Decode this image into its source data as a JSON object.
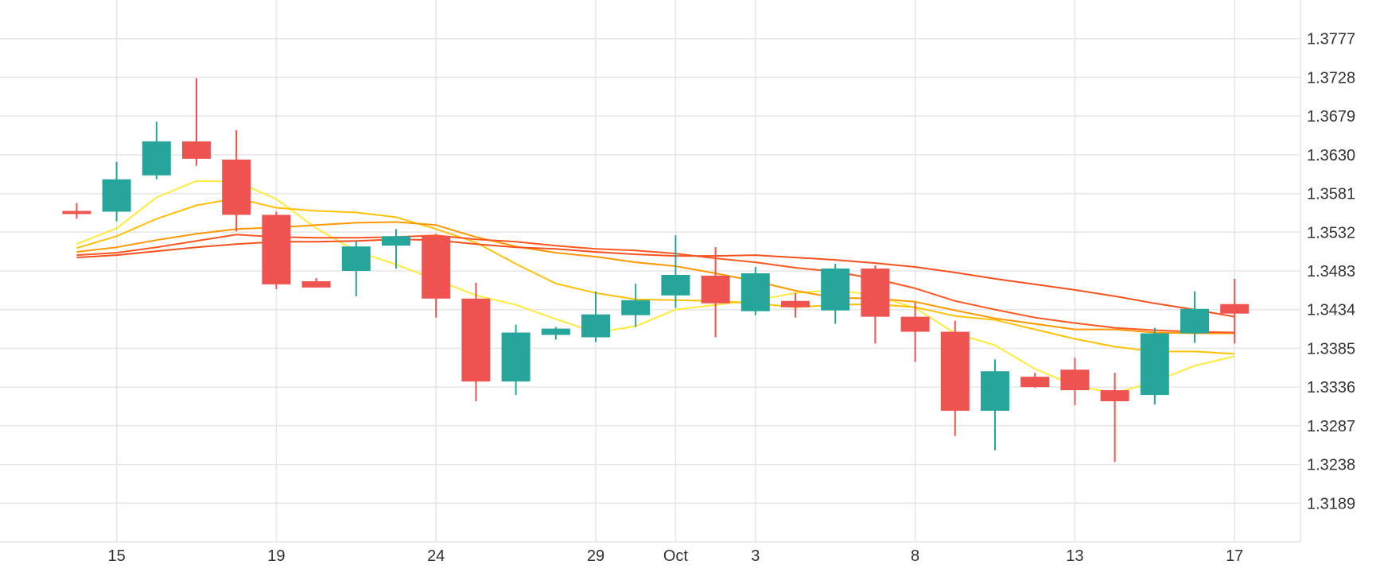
{
  "chart_data": {
    "type": "candlestick",
    "title": "",
    "xlabel": "",
    "ylabel": "",
    "ylim": [
      1.314,
      1.3826
    ],
    "y_ticks": [
      "1.3777",
      "1.3728",
      "1.3679",
      "1.3630",
      "1.3581",
      "1.3532",
      "1.3483",
      "1.3434",
      "1.3385",
      "1.3336",
      "1.3287",
      "1.3238",
      "1.3189"
    ],
    "x_ticks": [
      {
        "label": "15",
        "day": 2
      },
      {
        "label": "19",
        "day": 6
      },
      {
        "label": "24",
        "day": 10
      },
      {
        "label": "29",
        "day": 14
      },
      {
        "label": "Oct",
        "day": 16
      },
      {
        "label": "3",
        "day": 18
      },
      {
        "label": "8",
        "day": 22
      },
      {
        "label": "13",
        "day": 26
      },
      {
        "label": "17",
        "day": 30
      }
    ],
    "grid": true,
    "colors": {
      "up": "#26a69a",
      "down": "#ef5350",
      "grid": "#e6e6e6"
    },
    "candles": [
      {
        "day": 1,
        "o": 1.3559,
        "h": 1.3569,
        "l": 1.3549,
        "c": 1.3555
      },
      {
        "day": 2,
        "o": 1.3558,
        "h": 1.3621,
        "l": 1.3546,
        "c": 1.3599
      },
      {
        "day": 3,
        "o": 1.3604,
        "h": 1.3672,
        "l": 1.3599,
        "c": 1.3647
      },
      {
        "day": 4,
        "o": 1.3647,
        "h": 1.3727,
        "l": 1.3616,
        "c": 1.3625
      },
      {
        "day": 5,
        "o": 1.3624,
        "h": 1.3661,
        "l": 1.3533,
        "c": 1.3554
      },
      {
        "day": 6,
        "o": 1.3554,
        "h": 1.3558,
        "l": 1.346,
        "c": 1.3466
      },
      {
        "day": 7,
        "o": 1.347,
        "h": 1.3474,
        "l": 1.3462,
        "c": 1.3462
      },
      {
        "day": 8,
        "o": 1.3483,
        "h": 1.3521,
        "l": 1.3451,
        "c": 1.3514
      },
      {
        "day": 9,
        "o": 1.3515,
        "h": 1.3536,
        "l": 1.3486,
        "c": 1.3527
      },
      {
        "day": 10,
        "o": 1.3527,
        "h": 1.353,
        "l": 1.3424,
        "c": 1.3448
      },
      {
        "day": 11,
        "o": 1.3448,
        "h": 1.3468,
        "l": 1.3318,
        "c": 1.3343
      },
      {
        "day": 12,
        "o": 1.3343,
        "h": 1.3415,
        "l": 1.3326,
        "c": 1.3405
      },
      {
        "day": 13,
        "o": 1.3402,
        "h": 1.3412,
        "l": 1.3396,
        "c": 1.341
      },
      {
        "day": 14,
        "o": 1.3399,
        "h": 1.3457,
        "l": 1.3393,
        "c": 1.3428
      },
      {
        "day": 15,
        "o": 1.3427,
        "h": 1.3467,
        "l": 1.3412,
        "c": 1.3446
      },
      {
        "day": 16,
        "o": 1.3452,
        "h": 1.3528,
        "l": 1.3436,
        "c": 1.3478
      },
      {
        "day": 17,
        "o": 1.3477,
        "h": 1.3513,
        "l": 1.3399,
        "c": 1.3442
      },
      {
        "day": 18,
        "o": 1.3432,
        "h": 1.3488,
        "l": 1.3427,
        "c": 1.348
      },
      {
        "day": 19,
        "o": 1.3445,
        "h": 1.3455,
        "l": 1.3424,
        "c": 1.3437
      },
      {
        "day": 20,
        "o": 1.3433,
        "h": 1.3492,
        "l": 1.3416,
        "c": 1.3486
      },
      {
        "day": 21,
        "o": 1.3486,
        "h": 1.349,
        "l": 1.3391,
        "c": 1.3425
      },
      {
        "day": 22,
        "o": 1.3425,
        "h": 1.3443,
        "l": 1.3368,
        "c": 1.3406
      },
      {
        "day": 23,
        "o": 1.3406,
        "h": 1.342,
        "l": 1.3274,
        "c": 1.3306
      },
      {
        "day": 24,
        "o": 1.3306,
        "h": 1.3371,
        "l": 1.3256,
        "c": 1.3356
      },
      {
        "day": 25,
        "o": 1.3349,
        "h": 1.3354,
        "l": 1.3335,
        "c": 1.3336
      },
      {
        "day": 26,
        "o": 1.3358,
        "h": 1.3373,
        "l": 1.3313,
        "c": 1.3332
      },
      {
        "day": 27,
        "o": 1.3332,
        "h": 1.3354,
        "l": 1.3241,
        "c": 1.3318
      },
      {
        "day": 28,
        "o": 1.3326,
        "h": 1.3411,
        "l": 1.3314,
        "c": 1.3404
      },
      {
        "day": 29,
        "o": 1.3404,
        "h": 1.3457,
        "l": 1.3392,
        "c": 1.3435
      },
      {
        "day": 30,
        "o": 1.3441,
        "h": 1.3473,
        "l": 1.3391,
        "c": 1.3429
      }
    ],
    "moving_averages": [
      {
        "color": "#ffeb3b",
        "points": [
          [
            1,
            1.3517
          ],
          [
            2,
            1.3537
          ],
          [
            3,
            1.3576
          ],
          [
            4,
            1.3597
          ],
          [
            5,
            1.3596
          ],
          [
            6,
            1.3574
          ],
          [
            7,
            1.3537
          ],
          [
            8,
            1.3508
          ],
          [
            9,
            1.3491
          ],
          [
            10,
            1.3472
          ],
          [
            11,
            1.3452
          ],
          [
            12,
            1.344
          ],
          [
            13,
            1.3422
          ],
          [
            14,
            1.3405
          ],
          [
            15,
            1.3413
          ],
          [
            16,
            1.3434
          ],
          [
            17,
            1.344
          ],
          [
            18,
            1.3446
          ],
          [
            19,
            1.3455
          ],
          [
            20,
            1.3459
          ],
          [
            21,
            1.3452
          ],
          [
            22,
            1.3436
          ],
          [
            23,
            1.3404
          ],
          [
            24,
            1.3389
          ],
          [
            25,
            1.3359
          ],
          [
            26,
            1.3338
          ],
          [
            27,
            1.3328
          ],
          [
            28,
            1.3343
          ],
          [
            29,
            1.3363
          ],
          [
            30,
            1.3375
          ]
        ]
      },
      {
        "color": "#ffc107",
        "points": [
          [
            1,
            1.3512
          ],
          [
            2,
            1.3527
          ],
          [
            3,
            1.3549
          ],
          [
            4,
            1.3566
          ],
          [
            5,
            1.3575
          ],
          [
            6,
            1.3563
          ],
          [
            7,
            1.3559
          ],
          [
            8,
            1.3557
          ],
          [
            9,
            1.3551
          ],
          [
            10,
            1.3536
          ],
          [
            11,
            1.3519
          ],
          [
            12,
            1.3492
          ],
          [
            13,
            1.3467
          ],
          [
            14,
            1.3455
          ],
          [
            15,
            1.3447
          ],
          [
            16,
            1.3446
          ],
          [
            17,
            1.3445
          ],
          [
            18,
            1.3442
          ],
          [
            19,
            1.3437
          ],
          [
            20,
            1.344
          ],
          [
            21,
            1.3441
          ],
          [
            22,
            1.3437
          ],
          [
            23,
            1.3426
          ],
          [
            24,
            1.3421
          ],
          [
            25,
            1.3409
          ],
          [
            26,
            1.3397
          ],
          [
            27,
            1.3387
          ],
          [
            28,
            1.3381
          ],
          [
            29,
            1.3381
          ],
          [
            30,
            1.3378
          ]
        ]
      },
      {
        "color": "#ff9800",
        "points": [
          [
            1,
            1.3507
          ],
          [
            2,
            1.3513
          ],
          [
            3,
            1.3522
          ],
          [
            4,
            1.353
          ],
          [
            5,
            1.3536
          ],
          [
            6,
            1.3538
          ],
          [
            7,
            1.3541
          ],
          [
            8,
            1.3544
          ],
          [
            9,
            1.3545
          ],
          [
            10,
            1.3541
          ],
          [
            11,
            1.3526
          ],
          [
            12,
            1.3514
          ],
          [
            13,
            1.3506
          ],
          [
            14,
            1.3501
          ],
          [
            15,
            1.3494
          ],
          [
            16,
            1.3489
          ],
          [
            17,
            1.348
          ],
          [
            18,
            1.347
          ],
          [
            19,
            1.3458
          ],
          [
            20,
            1.3449
          ],
          [
            21,
            1.3448
          ],
          [
            22,
            1.3444
          ],
          [
            23,
            1.3433
          ],
          [
            24,
            1.3423
          ],
          [
            25,
            1.3416
          ],
          [
            26,
            1.3409
          ],
          [
            27,
            1.3409
          ],
          [
            28,
            1.3405
          ],
          [
            29,
            1.3404
          ],
          [
            30,
            1.3404
          ]
        ]
      },
      {
        "color": "#ff5722",
        "points": [
          [
            1,
            1.3503
          ],
          [
            2,
            1.3506
          ],
          [
            3,
            1.3513
          ],
          [
            4,
            1.3521
          ],
          [
            5,
            1.3529
          ],
          [
            6,
            1.3526
          ],
          [
            7,
            1.3525
          ],
          [
            8,
            1.3525
          ],
          [
            9,
            1.3526
          ],
          [
            10,
            1.3528
          ],
          [
            11,
            1.3523
          ],
          [
            12,
            1.352
          ],
          [
            13,
            1.3515
          ],
          [
            14,
            1.3511
          ],
          [
            15,
            1.3509
          ],
          [
            16,
            1.3505
          ],
          [
            17,
            1.3499
          ],
          [
            18,
            1.3494
          ],
          [
            19,
            1.3487
          ],
          [
            20,
            1.3482
          ],
          [
            21,
            1.3473
          ],
          [
            22,
            1.3461
          ],
          [
            23,
            1.3445
          ],
          [
            24,
            1.3434
          ],
          [
            25,
            1.3424
          ],
          [
            26,
            1.3417
          ],
          [
            27,
            1.3411
          ],
          [
            28,
            1.3408
          ],
          [
            29,
            1.3406
          ],
          [
            30,
            1.3405
          ]
        ]
      },
      {
        "color": "#f4511e",
        "points": [
          [
            1,
            1.35
          ],
          [
            2,
            1.3503
          ],
          [
            3,
            1.3508
          ],
          [
            4,
            1.3513
          ],
          [
            5,
            1.3517
          ],
          [
            6,
            1.352
          ],
          [
            7,
            1.352
          ],
          [
            8,
            1.3521
          ],
          [
            9,
            1.3523
          ],
          [
            10,
            1.3522
          ],
          [
            11,
            1.3517
          ],
          [
            12,
            1.3513
          ],
          [
            13,
            1.3511
          ],
          [
            14,
            1.3507
          ],
          [
            15,
            1.3504
          ],
          [
            16,
            1.3502
          ],
          [
            17,
            1.3502
          ],
          [
            18,
            1.3503
          ],
          [
            19,
            1.35
          ],
          [
            20,
            1.3497
          ],
          [
            21,
            1.3493
          ],
          [
            22,
            1.3488
          ],
          [
            23,
            1.3481
          ],
          [
            24,
            1.3473
          ],
          [
            25,
            1.3466
          ],
          [
            26,
            1.3459
          ],
          [
            27,
            1.3451
          ],
          [
            28,
            1.3442
          ],
          [
            29,
            1.3434
          ],
          [
            30,
            1.3425
          ]
        ]
      }
    ]
  }
}
